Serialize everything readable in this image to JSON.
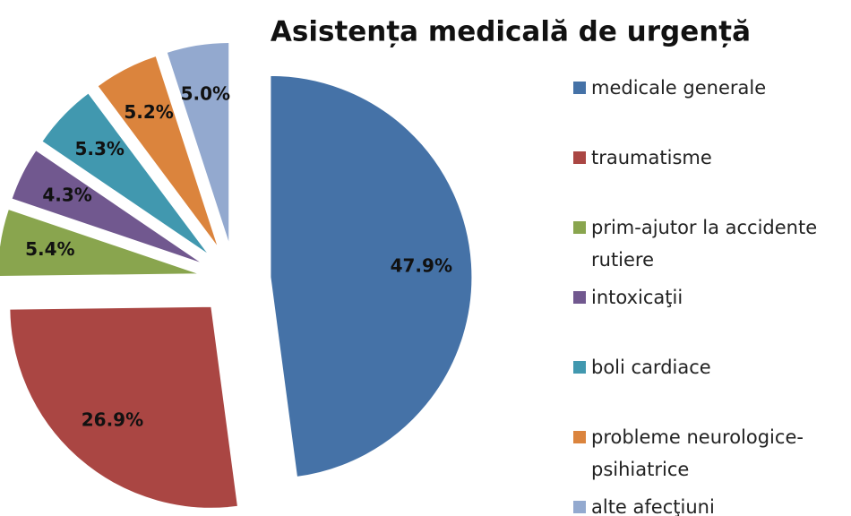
{
  "chart_data": {
    "type": "pie",
    "title": "Asistența medicală de urgență",
    "categories": [
      "medicale generale",
      "traumatisme",
      "prim-ajutor la accidente rutiere",
      "intoxicaţii",
      "boli cardiace",
      "probleme neurologice-psihiatrice",
      "alte afecţiuni"
    ],
    "values": [
      47.9,
      26.9,
      5.4,
      4.3,
      5.3,
      5.2,
      5.0
    ],
    "value_labels": [
      "47.9%",
      "26.9%",
      "5.4%",
      "4.3%",
      "5.3%",
      "5.2%",
      "5.0%"
    ],
    "colors": [
      "#4572a7",
      "#aa4643",
      "#89a54e",
      "#71588f",
      "#4198af",
      "#db843d",
      "#93a9cf"
    ],
    "legend": "right"
  }
}
